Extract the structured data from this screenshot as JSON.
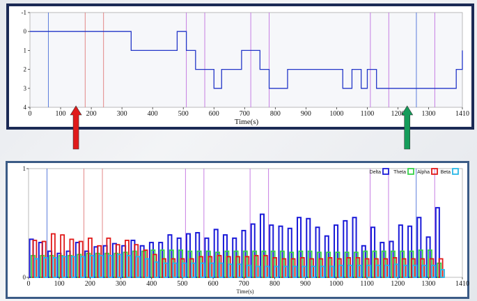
{
  "chart_data": [
    {
      "type": "line",
      "subtype": "step",
      "xlabel": "Time(s)",
      "ylabel": "",
      "xlim": [
        0,
        1410
      ],
      "ylim": [
        4,
        -1
      ],
      "y_inverted": true,
      "x_ticks": [
        0,
        100,
        200,
        300,
        400,
        500,
        600,
        700,
        800,
        900,
        1000,
        1100,
        1200,
        1300,
        1410
      ],
      "y_ticks": [
        -1,
        0,
        1,
        2,
        3,
        4
      ],
      "series": [
        {
          "color": "#2336c8",
          "x": [
            0,
            330,
            480,
            510,
            540,
            600,
            625,
            660,
            690,
            750,
            780,
            840,
            1020,
            1050,
            1080,
            1100,
            1130,
            1390,
            1410
          ],
          "y": [
            0,
            1,
            0,
            1,
            2,
            3,
            2,
            2,
            1,
            2,
            3,
            2,
            3,
            2,
            3,
            2,
            3,
            2,
            1
          ]
        }
      ],
      "markers": [
        {
          "x": 60,
          "color": "#4a6fd8"
        },
        {
          "x": 180,
          "color": "#e07a7a"
        },
        {
          "x": 240,
          "color": "#e07a7a"
        },
        {
          "x": 510,
          "color": "#c070e0"
        },
        {
          "x": 570,
          "color": "#c070e0"
        },
        {
          "x": 720,
          "color": "#c070e0"
        },
        {
          "x": 780,
          "color": "#c070e0"
        },
        {
          "x": 1110,
          "color": "#c070e0"
        },
        {
          "x": 1170,
          "color": "#c070e0"
        },
        {
          "x": 1260,
          "color": "#4a6fd8"
        },
        {
          "x": 1320,
          "color": "#c070e0"
        }
      ],
      "grid": false
    },
    {
      "type": "bar",
      "xlabel": "Time(s)",
      "ylabel": "",
      "xlim": [
        0,
        1410
      ],
      "ylim": [
        0,
        1
      ],
      "x_ticks": [
        0,
        100,
        200,
        300,
        400,
        500,
        600,
        700,
        800,
        900,
        1000,
        1100,
        1200,
        1300,
        1410
      ],
      "y_ticks": [
        0,
        1
      ],
      "bin_width": 30,
      "legend_position": "top-right",
      "series": [
        {
          "name": "Delta",
          "color": "#1a1ad8",
          "values": [
            0.35,
            0.32,
            0.24,
            0.22,
            0.24,
            0.32,
            0.24,
            0.28,
            0.29,
            0.31,
            0.29,
            0.34,
            0.29,
            0.32,
            0.32,
            0.39,
            0.36,
            0.4,
            0.41,
            0.36,
            0.44,
            0.39,
            0.36,
            0.43,
            0.49,
            0.58,
            0.48,
            0.47,
            0.45,
            0.55,
            0.54,
            0.46,
            0.38,
            0.48,
            0.52,
            0.55,
            0.29,
            0.46,
            0.32,
            0.33,
            0.48,
            0.47,
            0.55,
            0.37,
            0.64
          ]
        },
        {
          "name": "Theta",
          "color": "#36d24a",
          "values": [
            0.2,
            0.2,
            0.2,
            0.2,
            0.2,
            0.21,
            0.22,
            0.22,
            0.22,
            0.22,
            0.23,
            0.24,
            0.24,
            0.25,
            0.25,
            0.25,
            0.25,
            0.24,
            0.24,
            0.24,
            0.23,
            0.24,
            0.24,
            0.24,
            0.24,
            0.24,
            0.24,
            0.24,
            0.23,
            0.24,
            0.24,
            0.23,
            0.23,
            0.23,
            0.23,
            0.23,
            0.24,
            0.24,
            0.24,
            0.24,
            0.24,
            0.24,
            0.25,
            0.25,
            0.13
          ]
        },
        {
          "name": "Alpha",
          "color": "#e01818",
          "values": [
            0.34,
            0.33,
            0.4,
            0.39,
            0.35,
            0.33,
            0.36,
            0.29,
            0.36,
            0.3,
            0.34,
            0.3,
            0.25,
            0.21,
            0.17,
            0.17,
            0.17,
            0.17,
            0.19,
            0.19,
            0.2,
            0.19,
            0.19,
            0.19,
            0.2,
            0.2,
            0.18,
            0.17,
            0.17,
            0.18,
            0.17,
            0.17,
            0.18,
            0.17,
            0.18,
            0.18,
            0.17,
            0.17,
            0.17,
            0.18,
            0.17,
            0.17,
            0.17,
            0.17,
            0.17
          ]
        },
        {
          "name": "Beta",
          "color": "#28b8e8",
          "values": [
            0.17,
            0.18,
            0.18,
            0.19,
            0.19,
            0.19,
            0.2,
            0.2,
            0.2,
            0.21,
            0.2,
            0.19,
            0.17,
            0.14,
            0.13,
            0.13,
            0.13,
            0.13,
            0.13,
            0.13,
            0.13,
            0.12,
            0.12,
            0.11,
            0.1,
            0.1,
            0.1,
            0.1,
            0.1,
            0.1,
            0.1,
            0.1,
            0.1,
            0.11,
            0.11,
            0.11,
            0.11,
            0.11,
            0.11,
            0.12,
            0.11,
            0.11,
            0.11,
            0.11,
            0.07
          ]
        }
      ],
      "markers": [
        {
          "x": 60,
          "color": "#4a6fd8"
        },
        {
          "x": 180,
          "color": "#e07a7a"
        },
        {
          "x": 240,
          "color": "#e07a7a"
        },
        {
          "x": 510,
          "color": "#c070e0"
        },
        {
          "x": 570,
          "color": "#c070e0"
        },
        {
          "x": 720,
          "color": "#c070e0"
        },
        {
          "x": 780,
          "color": "#c070e0"
        },
        {
          "x": 1110,
          "color": "#c070e0"
        },
        {
          "x": 1170,
          "color": "#c070e0"
        },
        {
          "x": 1260,
          "color": "#4a6fd8"
        },
        {
          "x": 1320,
          "color": "#c070e0"
        }
      ],
      "grid": false
    }
  ],
  "arrows": [
    {
      "color": "#e01b1b",
      "points_to_x": 150
    },
    {
      "color": "#159c5a",
      "points_to_x": 1230
    }
  ]
}
